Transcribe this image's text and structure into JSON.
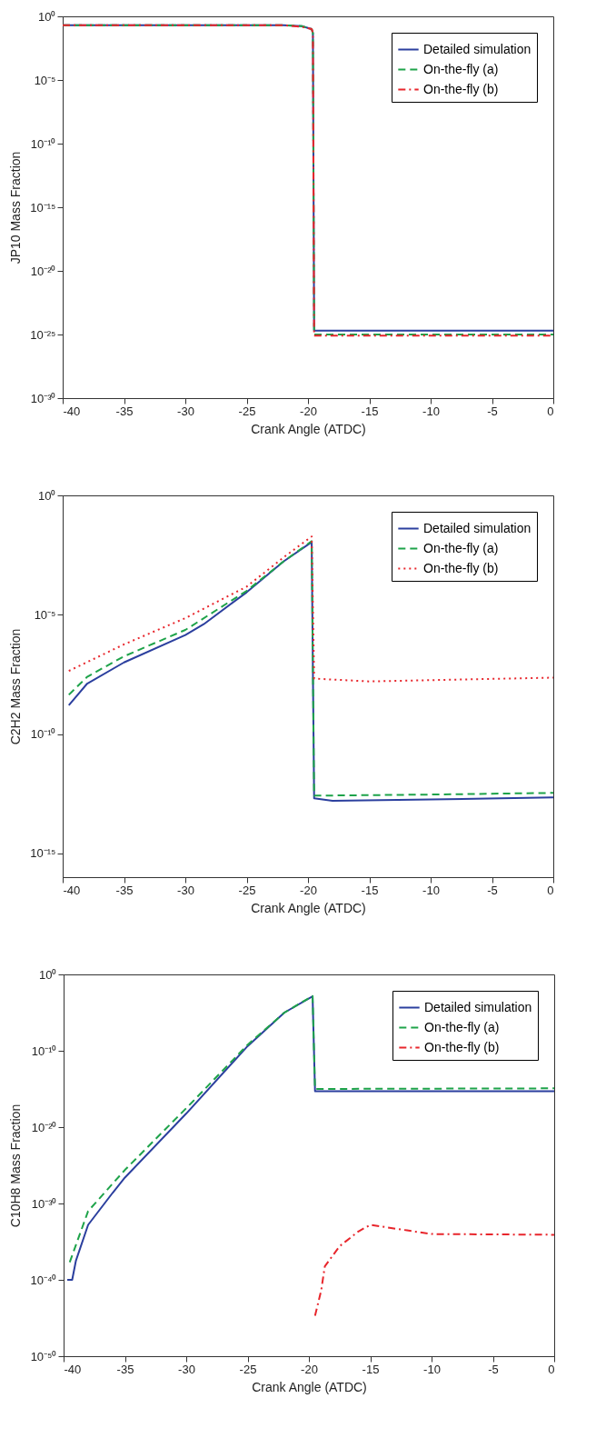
{
  "chart_data": [
    {
      "type": "line",
      "xlabel": "Crank Angle (ATDC)",
      "ylabel": "JP10 Mass Fraction",
      "log": true,
      "legend": "top right",
      "grid": false,
      "xlim": [
        -40,
        0
      ],
      "xticks": [
        -40,
        -35,
        -30,
        -25,
        -20,
        -15,
        -10,
        -5,
        0
      ],
      "ylim": [
        1e-30,
        1
      ],
      "yticks": [
        {
          "value": 1e-30,
          "label": "10⁻³⁰"
        },
        {
          "value": 1e-25,
          "label": "10⁻²⁵"
        },
        {
          "value": 1e-20,
          "label": "10⁻²⁰"
        },
        {
          "value": 1e-15,
          "label": "10⁻¹⁵"
        },
        {
          "value": 1e-10,
          "label": "10⁻¹⁰"
        },
        {
          "value": 1e-05,
          "label": "10⁻⁵"
        },
        {
          "value": 1,
          "label": "10⁰"
        }
      ],
      "series": [
        {
          "name": "Detailed simulation",
          "color": "#2b3f9e",
          "line_style": "solid",
          "x": [
            -40,
            -22,
            -20.5,
            -19.7,
            -19.6,
            -19.5,
            -10,
            0
          ],
          "values": [
            0.2,
            0.2,
            0.17,
            0.1,
            0.05,
            2e-25,
            2e-25,
            2e-25
          ]
        },
        {
          "name": "On-the-fly (a)",
          "color": "#1ea34a",
          "line_style": "dashed",
          "x": [
            -40,
            -22,
            -20.5,
            -19.7,
            -19.6,
            -19.5,
            -10,
            0
          ],
          "values": [
            0.2,
            0.2,
            0.17,
            0.1,
            0.05,
            1e-25,
            1e-25,
            1e-25
          ]
        },
        {
          "name": "On-the-fly (b)",
          "color": "#e8262c",
          "line_style": "dashdot",
          "x": [
            -40,
            -22,
            -20.5,
            -19.7,
            -19.6,
            -19.5,
            -10,
            0
          ],
          "values": [
            0.2,
            0.2,
            0.15,
            0.1,
            0.05,
            8e-26,
            8e-26,
            8e-26
          ]
        }
      ]
    },
    {
      "type": "line",
      "xlabel": "Crank Angle (ATDC)",
      "ylabel": "C2H2 Mass Fraction",
      "log": true,
      "legend": "top right",
      "grid": false,
      "xlim": [
        -40,
        0
      ],
      "xticks": [
        -40,
        -35,
        -30,
        -25,
        -20,
        -15,
        -10,
        -5,
        0
      ],
      "ylim": [
        1e-16,
        1
      ],
      "yticks": [
        {
          "value": 1e-15,
          "label": "10⁻¹⁵"
        },
        {
          "value": 1e-10,
          "label": "10⁻¹⁰"
        },
        {
          "value": 1e-05,
          "label": "10⁻⁵"
        },
        {
          "value": 1,
          "label": "10⁰"
        }
      ],
      "series": [
        {
          "name": "Detailed simulation",
          "color": "#2b3f9e",
          "line_style": "solid",
          "x": [
            -39.5,
            -38,
            -35,
            -30,
            -28.5,
            -25,
            -22,
            -19.7,
            -19.5,
            -18,
            -10,
            0
          ],
          "values": [
            1.6e-09,
            1.3e-08,
            1e-07,
            1.4e-06,
            4e-06,
            8.7e-05,
            0.0017,
            0.011,
            2e-13,
            1.6e-13,
            1.8e-13,
            2.2e-13
          ]
        },
        {
          "name": "On-the-fly (a)",
          "color": "#1ea34a",
          "line_style": "dashed",
          "x": [
            -39.5,
            -38,
            -35,
            -30,
            -25,
            -22,
            -19.7,
            -19.5,
            -10,
            0
          ],
          "values": [
            4.4e-09,
            2.5e-08,
            1.8e-07,
            2.3e-06,
            0.0001,
            0.0017,
            0.012,
            2.6e-13,
            2.9e-13,
            3.4e-13
          ]
        },
        {
          "name": "On-the-fly (b)",
          "color": "#e8262c",
          "line_style": "dotted",
          "x": [
            -39.5,
            -35,
            -30,
            -25,
            -22,
            -19.7,
            -19.5,
            -15,
            0
          ],
          "values": [
            4.4e-08,
            5.7e-07,
            7.2e-06,
            0.00015,
            0.0025,
            0.019,
            2.1e-08,
            1.6e-08,
            2.3e-08
          ]
        }
      ]
    },
    {
      "type": "line",
      "xlabel": "Crank Angle (ATDC)",
      "ylabel": "C10H8 Mass Fraction",
      "log": true,
      "legend": "top right",
      "grid": false,
      "xlim": [
        -40,
        0
      ],
      "xticks": [
        -40,
        -35,
        -30,
        -25,
        -20,
        -15,
        -10,
        -5,
        0
      ],
      "ylim": [
        1e-50,
        1
      ],
      "yticks": [
        {
          "value": 1e-50,
          "label": "10⁻⁵⁰"
        },
        {
          "value": 1e-40,
          "label": "10⁻⁴⁰"
        },
        {
          "value": 1e-30,
          "label": "10⁻³⁰"
        },
        {
          "value": 1e-20,
          "label": "10⁻²⁰"
        },
        {
          "value": 1e-10,
          "label": "10⁻¹⁰"
        },
        {
          "value": 1,
          "label": "10⁰"
        }
      ],
      "series": [
        {
          "name": "Detailed simulation",
          "color": "#2b3f9e",
          "line_style": "solid",
          "x": [
            -39.7,
            -39.3,
            -39,
            -38,
            -36,
            -35,
            -30,
            -25,
            -22,
            -19.7,
            -19.5,
            -10,
            0
          ],
          "values": [
            1e-40,
            1e-40,
            3e-38,
            1.6e-33,
            2.5e-29,
            2.5e-27,
            6e-19,
            4e-10,
            1e-05,
            0.0013,
            5e-16,
            5e-16,
            5e-16
          ]
        },
        {
          "name": "On-the-fly (a)",
          "color": "#1ea34a",
          "line_style": "dashed",
          "x": [
            -39.5,
            -38,
            -35,
            -30,
            -25,
            -22,
            -19.7,
            -19.5,
            -10,
            0
          ],
          "values": [
            2e-38,
            1e-31,
            2.5e-26,
            3e-18,
            6e-10,
            1e-05,
            0.0015,
            1e-15,
            1.1e-15,
            1.2e-15
          ]
        },
        {
          "name": "On-the-fly (b)",
          "color": "#e8262c",
          "line_style": "dashdot",
          "x": [
            -19.5,
            -19,
            -18.7,
            -17.5,
            -16,
            -15,
            -12,
            -10,
            0
          ],
          "values": [
            2e-45,
            4e-42,
            6e-39,
            2.5e-36,
            2e-34,
            1.6e-33,
            3e-34,
            1e-34,
            8e-35
          ]
        }
      ]
    }
  ]
}
